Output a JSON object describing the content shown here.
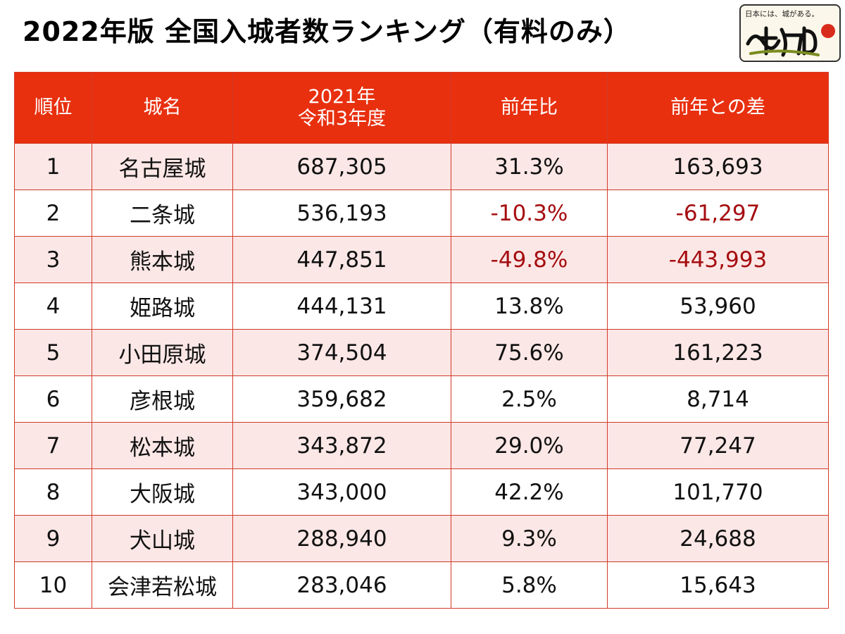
{
  "title": "2022年版 全国入城者数ランキング（有料のみ）",
  "logo": {
    "tagline": "日本には、城がある。"
  },
  "colors": {
    "header_bg": "#e8300f",
    "stripe": "#fbe7e6",
    "negative": "#a50d10"
  },
  "table": {
    "headers": {
      "rank": "順位",
      "castle": "城名",
      "visitors_line1": "2021年",
      "visitors_line2": "令和3年度",
      "ratio": "前年比",
      "diff": "前年との差"
    },
    "rows": [
      {
        "rank": "1",
        "castle": "名古屋城",
        "visitors": "687,305",
        "ratio": "31.3%",
        "diff": "163,693",
        "negative": false
      },
      {
        "rank": "2",
        "castle": "二条城",
        "visitors": "536,193",
        "ratio": "-10.3%",
        "diff": "-61,297",
        "negative": true
      },
      {
        "rank": "3",
        "castle": "熊本城",
        "visitors": "447,851",
        "ratio": "-49.8%",
        "diff": "-443,993",
        "negative": true
      },
      {
        "rank": "4",
        "castle": "姫路城",
        "visitors": "444,131",
        "ratio": "13.8%",
        "diff": "53,960",
        "negative": false
      },
      {
        "rank": "5",
        "castle": "小田原城",
        "visitors": "374,504",
        "ratio": "75.6%",
        "diff": "161,223",
        "negative": false
      },
      {
        "rank": "6",
        "castle": "彦根城",
        "visitors": "359,682",
        "ratio": "2.5%",
        "diff": "8,714",
        "negative": false
      },
      {
        "rank": "7",
        "castle": "松本城",
        "visitors": "343,872",
        "ratio": "29.0%",
        "diff": "77,247",
        "negative": false
      },
      {
        "rank": "8",
        "castle": "大阪城",
        "visitors": "343,000",
        "ratio": "42.2%",
        "diff": "101,770",
        "negative": false
      },
      {
        "rank": "9",
        "castle": "犬山城",
        "visitors": "288,940",
        "ratio": "9.3%",
        "diff": "24,688",
        "negative": false
      },
      {
        "rank": "10",
        "castle": "会津若松城",
        "visitors": "283,046",
        "ratio": "5.8%",
        "diff": "15,643",
        "negative": false
      }
    ]
  }
}
